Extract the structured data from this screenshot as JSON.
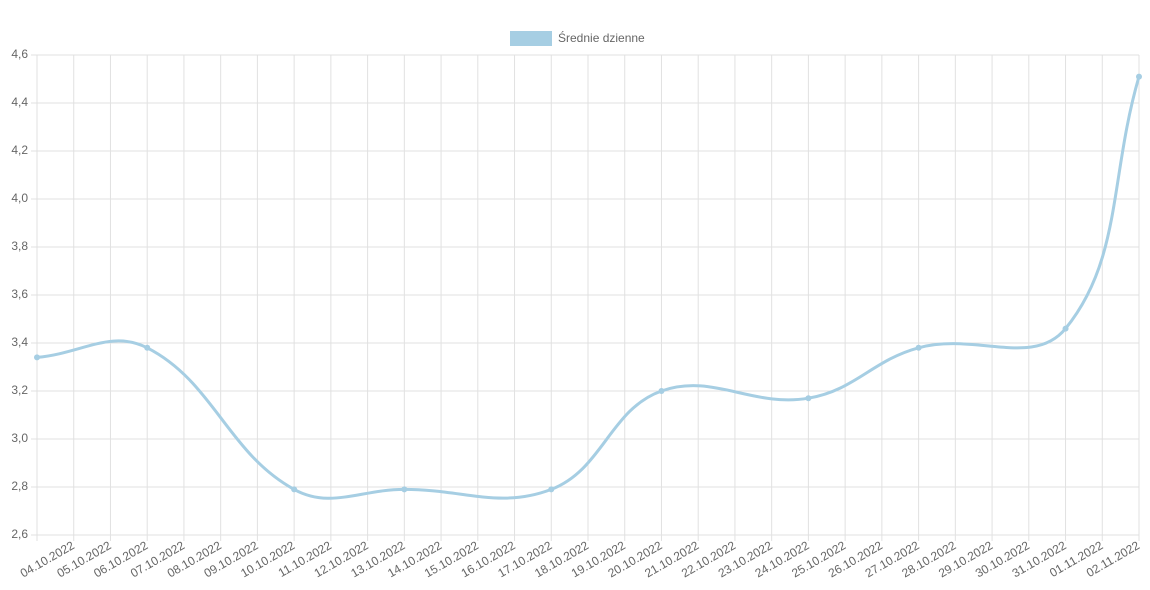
{
  "chart_data": {
    "type": "line",
    "x": [
      0,
      3,
      7,
      10,
      14,
      17,
      21,
      24,
      28,
      30
    ],
    "series": [
      {
        "name": "Średnie dzienne",
        "color": "#a6cee3",
        "values": [
          3.34,
          3.38,
          2.79,
          2.79,
          2.79,
          3.2,
          3.17,
          3.38,
          3.46,
          4.51
        ]
      }
    ],
    "xlim": [
      0,
      30
    ],
    "xticks": [
      {
        "value": 1,
        "label": "04.10.2022"
      },
      {
        "value": 2,
        "label": "05.10.2022"
      },
      {
        "value": 3,
        "label": "06.10.2022"
      },
      {
        "value": 4,
        "label": "07.10.2022"
      },
      {
        "value": 5,
        "label": "08.10.2022"
      },
      {
        "value": 6,
        "label": "09.10.2022"
      },
      {
        "value": 7,
        "label": "10.10.2022"
      },
      {
        "value": 8,
        "label": "11.10.2022"
      },
      {
        "value": 9,
        "label": "12.10.2022"
      },
      {
        "value": 10,
        "label": "13.10.2022"
      },
      {
        "value": 11,
        "label": "14.10.2022"
      },
      {
        "value": 12,
        "label": "15.10.2022"
      },
      {
        "value": 13,
        "label": "16.10.2022"
      },
      {
        "value": 14,
        "label": "17.10.2022"
      },
      {
        "value": 15,
        "label": "18.10.2022"
      },
      {
        "value": 16,
        "label": "19.10.2022"
      },
      {
        "value": 17,
        "label": "20.10.2022"
      },
      {
        "value": 18,
        "label": "21.10.2022"
      },
      {
        "value": 19,
        "label": "22.10.2022"
      },
      {
        "value": 20,
        "label": "23.10.2022"
      },
      {
        "value": 21,
        "label": "24.10.2022"
      },
      {
        "value": 22,
        "label": "25.10.2022"
      },
      {
        "value": 23,
        "label": "26.10.2022"
      },
      {
        "value": 24,
        "label": "27.10.2022"
      },
      {
        "value": 25,
        "label": "28.10.2022"
      },
      {
        "value": 26,
        "label": "29.10.2022"
      },
      {
        "value": 27,
        "label": "30.10.2022"
      },
      {
        "value": 28,
        "label": "31.10.2022"
      },
      {
        "value": 29,
        "label": "01.11.2022"
      },
      {
        "value": 30,
        "label": "02.11.2022"
      }
    ],
    "ylim": [
      2.6,
      4.6
    ],
    "yticks": [
      {
        "value": 2.6,
        "label": "2,6"
      },
      {
        "value": 2.8,
        "label": "2,8"
      },
      {
        "value": 3.0,
        "label": "3,0"
      },
      {
        "value": 3.2,
        "label": "3,2"
      },
      {
        "value": 3.4,
        "label": "3,4"
      },
      {
        "value": 3.6,
        "label": "3,6"
      },
      {
        "value": 3.8,
        "label": "3,8"
      },
      {
        "value": 4.0,
        "label": "4,0"
      },
      {
        "value": 4.2,
        "label": "4,2"
      },
      {
        "value": 4.4,
        "label": "4,4"
      },
      {
        "value": 4.6,
        "label": "4,6"
      }
    ],
    "grid": true,
    "legend": "top"
  }
}
